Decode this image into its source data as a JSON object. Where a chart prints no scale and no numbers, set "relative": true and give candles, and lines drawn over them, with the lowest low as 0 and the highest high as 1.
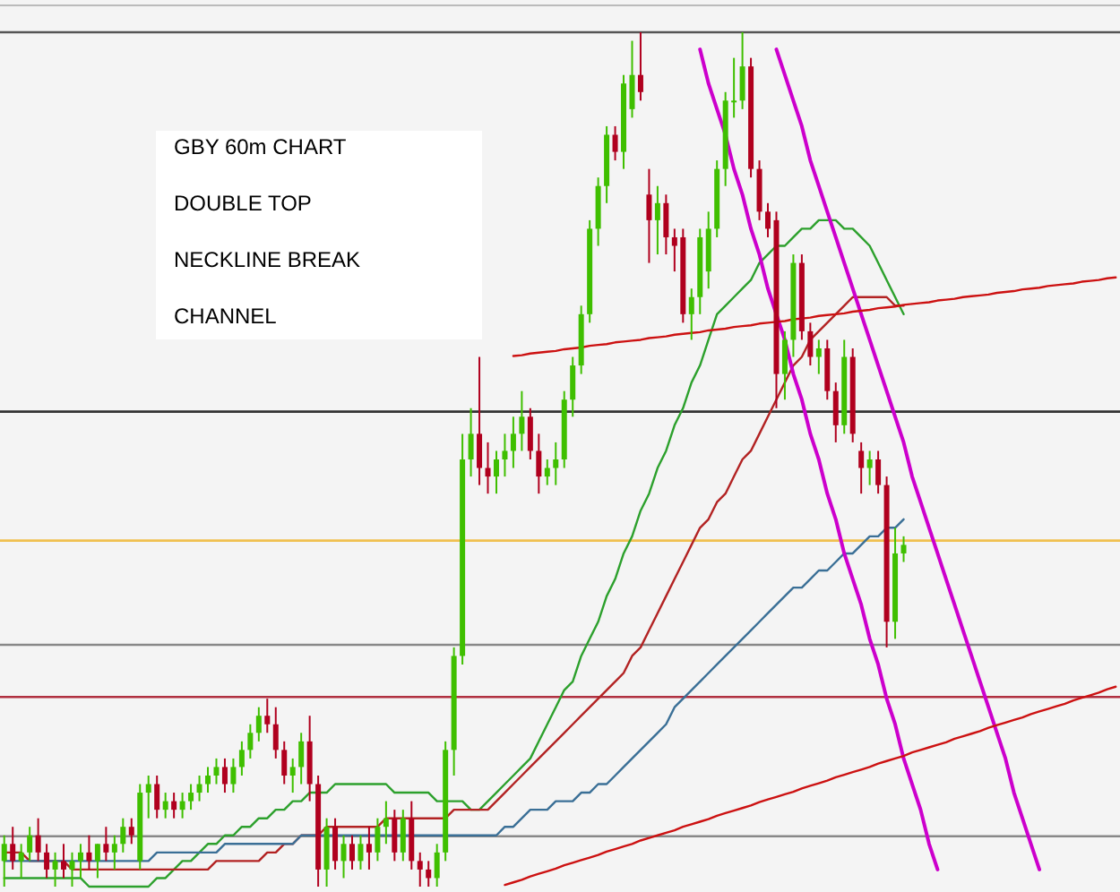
{
  "chart_data": {
    "type": "candlestick",
    "relative": true,
    "annotations": [
      "GBY 60m CHART",
      "DOUBLE TOP",
      "NECKLINE BREAK",
      "CHANNEL"
    ],
    "categories": [
      null,
      null,
      null,
      null,
      null,
      null,
      null,
      null,
      null,
      null,
      null,
      null,
      null,
      null,
      null,
      null,
      null,
      null,
      null,
      null,
      null,
      null,
      null,
      null,
      null,
      null,
      null,
      null,
      null,
      null,
      null,
      null,
      null,
      null,
      null,
      null,
      null,
      null,
      null,
      null,
      null,
      null,
      null,
      null,
      null,
      null,
      null,
      null,
      null,
      null,
      null,
      null,
      null,
      null,
      null,
      null,
      null,
      null,
      null,
      null,
      null,
      null,
      null,
      null,
      null,
      null,
      null,
      null,
      null,
      null,
      null,
      null,
      null,
      null,
      null,
      null,
      null,
      null,
      null,
      null,
      null,
      null,
      null,
      null,
      null,
      null,
      null,
      null,
      null,
      null,
      null,
      null,
      null,
      null,
      null,
      null,
      null,
      null,
      null,
      null,
      null,
      null,
      null,
      null,
      null,
      null,
      null,
      null,
      null,
      null,
      null,
      null,
      null,
      null,
      null,
      null,
      null,
      null,
      null,
      null,
      null,
      null,
      null,
      null,
      null,
      null,
      null,
      null,
      null,
      null,
      null,
      null
    ],
    "ohlc": [
      [
        0.03,
        0.06,
        0.0,
        0.05
      ],
      [
        0.05,
        0.07,
        0.02,
        0.03
      ],
      [
        0.03,
        0.05,
        0.01,
        0.04
      ],
      [
        0.04,
        0.07,
        0.03,
        0.06
      ],
      [
        0.06,
        0.08,
        0.03,
        0.04
      ],
      [
        0.04,
        0.05,
        0.01,
        0.02
      ],
      [
        0.02,
        0.04,
        0.0,
        0.03
      ],
      [
        0.03,
        0.05,
        0.01,
        0.02
      ],
      [
        0.02,
        0.04,
        0.0,
        0.03
      ],
      [
        0.03,
        0.05,
        0.01,
        0.04
      ],
      [
        0.04,
        0.06,
        0.02,
        0.03
      ],
      [
        0.03,
        0.05,
        0.01,
        0.05
      ],
      [
        0.05,
        0.07,
        0.03,
        0.04
      ],
      [
        0.04,
        0.06,
        0.02,
        0.05
      ],
      [
        0.05,
        0.08,
        0.04,
        0.07
      ],
      [
        0.07,
        0.08,
        0.05,
        0.06
      ],
      [
        0.03,
        0.12,
        0.02,
        0.11
      ],
      [
        0.11,
        0.13,
        0.08,
        0.12
      ],
      [
        0.12,
        0.13,
        0.08,
        0.09
      ],
      [
        0.09,
        0.11,
        0.08,
        0.1
      ],
      [
        0.1,
        0.11,
        0.08,
        0.09
      ],
      [
        0.09,
        0.11,
        0.08,
        0.1
      ],
      [
        0.1,
        0.12,
        0.09,
        0.11
      ],
      [
        0.11,
        0.13,
        0.1,
        0.12
      ],
      [
        0.12,
        0.14,
        0.11,
        0.13
      ],
      [
        0.13,
        0.15,
        0.12,
        0.14
      ],
      [
        0.14,
        0.15,
        0.11,
        0.12
      ],
      [
        0.12,
        0.15,
        0.11,
        0.14
      ],
      [
        0.14,
        0.17,
        0.13,
        0.16
      ],
      [
        0.16,
        0.19,
        0.15,
        0.18
      ],
      [
        0.18,
        0.21,
        0.17,
        0.2
      ],
      [
        0.2,
        0.22,
        0.18,
        0.19
      ],
      [
        0.19,
        0.21,
        0.15,
        0.16
      ],
      [
        0.16,
        0.17,
        0.12,
        0.13
      ],
      [
        0.13,
        0.15,
        0.11,
        0.14
      ],
      [
        0.14,
        0.18,
        0.12,
        0.17
      ],
      [
        0.17,
        0.2,
        0.1,
        0.12
      ],
      [
        0.12,
        0.13,
        0.0,
        0.02
      ],
      [
        0.02,
        0.08,
        0.0,
        0.07
      ],
      [
        0.07,
        0.08,
        0.02,
        0.03
      ],
      [
        0.03,
        0.06,
        0.01,
        0.05
      ],
      [
        0.05,
        0.06,
        0.02,
        0.03
      ],
      [
        0.03,
        0.06,
        0.02,
        0.05
      ],
      [
        0.05,
        0.07,
        0.02,
        0.04
      ],
      [
        0.04,
        0.08,
        0.03,
        0.07
      ],
      [
        0.07,
        0.1,
        0.05,
        0.08
      ],
      [
        0.08,
        0.09,
        0.03,
        0.04
      ],
      [
        0.04,
        0.09,
        0.03,
        0.08
      ],
      [
        0.08,
        0.1,
        0.02,
        0.03
      ],
      [
        0.03,
        0.04,
        0.0,
        0.02
      ],
      [
        0.02,
        0.03,
        0.0,
        0.01
      ],
      [
        0.01,
        0.05,
        0.0,
        0.04
      ],
      [
        0.04,
        0.17,
        0.03,
        0.16
      ],
      [
        0.16,
        0.28,
        0.13,
        0.27
      ],
      [
        0.27,
        0.53,
        0.26,
        0.5
      ],
      [
        0.5,
        0.56,
        0.48,
        0.53
      ],
      [
        0.53,
        0.62,
        0.47,
        0.49
      ],
      [
        0.49,
        0.52,
        0.46,
        0.48
      ],
      [
        0.48,
        0.51,
        0.46,
        0.5
      ],
      [
        0.5,
        0.53,
        0.48,
        0.51
      ],
      [
        0.51,
        0.55,
        0.49,
        0.53
      ],
      [
        0.53,
        0.58,
        0.51,
        0.55
      ],
      [
        0.55,
        0.56,
        0.5,
        0.51
      ],
      [
        0.51,
        0.53,
        0.46,
        0.48
      ],
      [
        0.48,
        0.5,
        0.47,
        0.49
      ],
      [
        0.49,
        0.52,
        0.47,
        0.5
      ],
      [
        0.5,
        0.58,
        0.49,
        0.57
      ],
      [
        0.57,
        0.62,
        0.55,
        0.61
      ],
      [
        0.61,
        0.68,
        0.6,
        0.67
      ],
      [
        0.67,
        0.78,
        0.66,
        0.77
      ],
      [
        0.77,
        0.83,
        0.75,
        0.82
      ],
      [
        0.82,
        0.89,
        0.8,
        0.88
      ],
      [
        0.88,
        0.89,
        0.85,
        0.86
      ],
      [
        0.86,
        0.95,
        0.84,
        0.94
      ],
      [
        0.91,
        0.99,
        0.9,
        0.95
      ],
      [
        0.95,
        1.0,
        0.92,
        0.93
      ],
      [
        0.81,
        0.84,
        0.73,
        0.78
      ],
      [
        0.78,
        0.82,
        0.74,
        0.8
      ],
      [
        0.8,
        0.81,
        0.74,
        0.76
      ],
      [
        0.76,
        0.77,
        0.72,
        0.75
      ],
      [
        0.76,
        0.77,
        0.66,
        0.67
      ],
      [
        0.67,
        0.7,
        0.64,
        0.69
      ],
      [
        0.69,
        0.77,
        0.67,
        0.76
      ],
      [
        0.72,
        0.79,
        0.7,
        0.77
      ],
      [
        0.77,
        0.85,
        0.76,
        0.84
      ],
      [
        0.84,
        0.93,
        0.82,
        0.92
      ],
      [
        0.92,
        0.97,
        0.9,
        0.92
      ],
      [
        0.92,
        1.0,
        0.91,
        0.96
      ],
      [
        0.96,
        0.97,
        0.83,
        0.84
      ],
      [
        0.84,
        0.85,
        0.78,
        0.79
      ],
      [
        0.79,
        0.8,
        0.76,
        0.77
      ],
      [
        0.78,
        0.79,
        0.56,
        0.6
      ],
      [
        0.6,
        0.65,
        0.57,
        0.64
      ],
      [
        0.64,
        0.74,
        0.62,
        0.73
      ],
      [
        0.73,
        0.74,
        0.64,
        0.65
      ],
      [
        0.65,
        0.66,
        0.61,
        0.62
      ],
      [
        0.62,
        0.64,
        0.6,
        0.63
      ],
      [
        0.63,
        0.64,
        0.57,
        0.58
      ],
      [
        0.58,
        0.59,
        0.52,
        0.54
      ],
      [
        0.54,
        0.64,
        0.53,
        0.62
      ],
      [
        0.62,
        0.63,
        0.52,
        0.53
      ],
      [
        0.51,
        0.52,
        0.46,
        0.49
      ],
      [
        0.49,
        0.51,
        0.47,
        0.5
      ],
      [
        0.5,
        0.51,
        0.46,
        0.47
      ],
      [
        0.47,
        0.48,
        0.28,
        0.31
      ],
      [
        0.31,
        0.42,
        0.29,
        0.39
      ],
      [
        0.39,
        0.41,
        0.38,
        0.4
      ],
      null,
      null,
      null,
      null,
      null,
      null,
      null,
      null,
      null,
      null,
      null,
      null,
      null,
      null,
      null,
      null,
      null,
      null,
      null,
      null,
      null,
      null,
      null,
      null,
      null
    ],
    "series": [
      {
        "type": "line",
        "color": "#2ca02c",
        "values": [
          0.01,
          0.01,
          0.01,
          0.01,
          0.01,
          0.01,
          0.01,
          0.01,
          0.01,
          0.01,
          0,
          0,
          0,
          0,
          0,
          0,
          0,
          0,
          0.01,
          0.01,
          0.02,
          0.03,
          0.03,
          0.04,
          0.05,
          0.05,
          0.06,
          0.06,
          0.07,
          0.07,
          0.08,
          0.08,
          0.09,
          0.09,
          0.1,
          0.1,
          0.11,
          0.11,
          0.11,
          0.12,
          0.12,
          0.12,
          0.12,
          0.12,
          0.12,
          0.12,
          0.11,
          0.11,
          0.11,
          0.11,
          0.11,
          0.1,
          0.1,
          0.1,
          0.1,
          0.09,
          0.09,
          0.1,
          0.11,
          0.12,
          0.13,
          0.14,
          0.15,
          0.17,
          0.19,
          0.21,
          0.23,
          0.24,
          0.27,
          0.29,
          0.31,
          0.34,
          0.36,
          0.39,
          0.41,
          0.44,
          0.46,
          0.49,
          0.51,
          0.54,
          0.56,
          0.59,
          0.61,
          0.64,
          0.67,
          0.68,
          0.69,
          0.7,
          0.71,
          0.73,
          0.74,
          0.75,
          0.75,
          0.76,
          0.77,
          0.77,
          0.78,
          0.78,
          0.78,
          0.77,
          0.77,
          0.76,
          0.75,
          0.73,
          0.71,
          0.69,
          0.67,
          null,
          null,
          null,
          null,
          null,
          null,
          null,
          null,
          null,
          null,
          null,
          null,
          null,
          null,
          null,
          null,
          null,
          null,
          null,
          null,
          null,
          null,
          null,
          null,
          null
        ]
      },
      {
        "type": "line",
        "color": "#b22222",
        "values": [
          0.04,
          0.04,
          0.04,
          0.03,
          0.03,
          0.03,
          0.03,
          0.03,
          0.02,
          0.02,
          0.02,
          0.02,
          0.02,
          0.02,
          0.02,
          0.02,
          0.02,
          0.02,
          0.02,
          0.02,
          0.02,
          0.02,
          0.02,
          0.02,
          0.02,
          0.03,
          0.03,
          0.03,
          0.03,
          0.03,
          0.03,
          0.04,
          0.04,
          0.05,
          0.05,
          0.06,
          0.06,
          0.06,
          0.07,
          0.07,
          0.07,
          0.07,
          0.07,
          0.07,
          0.07,
          0.08,
          0.08,
          0.08,
          0.08,
          0.08,
          0.08,
          0.08,
          0.08,
          0.09,
          0.09,
          0.09,
          0.09,
          0.09,
          0.1,
          0.11,
          0.12,
          0.13,
          0.14,
          0.15,
          0.16,
          0.17,
          0.18,
          0.19,
          0.2,
          0.21,
          0.22,
          0.23,
          0.24,
          0.25,
          0.27,
          0.28,
          0.3,
          0.32,
          0.34,
          0.36,
          0.38,
          0.4,
          0.42,
          0.43,
          0.45,
          0.46,
          0.48,
          0.5,
          0.51,
          0.53,
          0.55,
          0.57,
          0.59,
          0.61,
          0.62,
          0.64,
          0.65,
          0.66,
          0.67,
          0.68,
          0.69,
          0.69,
          0.69,
          0.69,
          0.69,
          0.68,
          0.68,
          null,
          null,
          null,
          null,
          null,
          null,
          null,
          null,
          null,
          null,
          null,
          null,
          null,
          null,
          null,
          null,
          null,
          null,
          null,
          null,
          null,
          null,
          null,
          null,
          null
        ]
      },
      {
        "type": "line",
        "color": "#3a6f96",
        "values": [
          0.03,
          0.03,
          0.03,
          0.03,
          0.03,
          0.03,
          0.03,
          0.03,
          0.03,
          0.03,
          0.03,
          0.03,
          0.03,
          0.03,
          0.03,
          0.03,
          0.03,
          0.03,
          0.04,
          0.04,
          0.04,
          0.04,
          0.04,
          0.04,
          0.04,
          0.04,
          0.05,
          0.05,
          0.05,
          0.05,
          0.05,
          0.05,
          0.05,
          0.05,
          0.05,
          0.06,
          0.06,
          0.06,
          0.06,
          0.06,
          0.06,
          0.06,
          0.06,
          0.06,
          0.06,
          0.06,
          0.06,
          0.06,
          0.06,
          0.06,
          0.06,
          0.06,
          0.06,
          0.06,
          0.06,
          0.06,
          0.06,
          0.06,
          0.06,
          0.07,
          0.07,
          0.08,
          0.09,
          0.09,
          0.09,
          0.1,
          0.1,
          0.1,
          0.11,
          0.11,
          0.12,
          0.12,
          0.13,
          0.14,
          0.15,
          0.16,
          0.17,
          0.18,
          0.19,
          0.21,
          0.22,
          0.23,
          0.24,
          0.25,
          0.26,
          0.27,
          0.28,
          0.29,
          0.3,
          0.31,
          0.32,
          0.33,
          0.34,
          0.35,
          0.35,
          0.36,
          0.37,
          0.37,
          0.38,
          0.39,
          0.39,
          0.4,
          0.41,
          0.41,
          0.42,
          0.42,
          0.43,
          null,
          null,
          null,
          null,
          null,
          null,
          null,
          null,
          null,
          null,
          null,
          null,
          null,
          null,
          null,
          null,
          null,
          null,
          null,
          null,
          null,
          null,
          null,
          null,
          null
        ]
      },
      {
        "type": "line",
        "color": "#cc00cc",
        "values": [
          null,
          null,
          null,
          null,
          null,
          null,
          null,
          null,
          null,
          null,
          null,
          null,
          null,
          null,
          null,
          null,
          null,
          null,
          null,
          null,
          null,
          null,
          null,
          null,
          null,
          null,
          null,
          null,
          null,
          null,
          null,
          null,
          null,
          null,
          null,
          null,
          null,
          null,
          null,
          null,
          null,
          null,
          null,
          null,
          null,
          null,
          null,
          null,
          null,
          null,
          null,
          null,
          null,
          null,
          null,
          null,
          null,
          null,
          null,
          null,
          null,
          null,
          null,
          null,
          null,
          null,
          null,
          null,
          null,
          null,
          null,
          null,
          null,
          null,
          null,
          null,
          null,
          null,
          null,
          null,
          null,
          null,
          0.98,
          0.94,
          0.91,
          0.88,
          0.84,
          0.81,
          0.77,
          0.74,
          0.7,
          0.67,
          0.64,
          0.6,
          0.57,
          0.53,
          0.5,
          0.46,
          0.43,
          0.39,
          0.36,
          0.33,
          0.29,
          0.26,
          0.22,
          0.19,
          0.15,
          0.12,
          0.09,
          0.05,
          0.02,
          null,
          null,
          null,
          null,
          null,
          null,
          null,
          null,
          null,
          null,
          null,
          null,
          null,
          null,
          null,
          null,
          null,
          null,
          null,
          null,
          null
        ]
      },
      {
        "type": "line",
        "color": "#cc00cc",
        "values": [
          null,
          null,
          null,
          null,
          null,
          null,
          null,
          null,
          null,
          null,
          null,
          null,
          null,
          null,
          null,
          null,
          null,
          null,
          null,
          null,
          null,
          null,
          null,
          null,
          null,
          null,
          null,
          null,
          null,
          null,
          null,
          null,
          null,
          null,
          null,
          null,
          null,
          null,
          null,
          null,
          null,
          null,
          null,
          null,
          null,
          null,
          null,
          null,
          null,
          null,
          null,
          null,
          null,
          null,
          null,
          null,
          null,
          null,
          null,
          null,
          null,
          null,
          null,
          null,
          null,
          null,
          null,
          null,
          null,
          null,
          null,
          null,
          null,
          null,
          null,
          null,
          null,
          null,
          null,
          null,
          null,
          null,
          null,
          null,
          null,
          null,
          null,
          null,
          null,
          null,
          null,
          0.98,
          0.95,
          0.92,
          0.89,
          0.85,
          0.82,
          0.79,
          0.76,
          0.73,
          0.7,
          0.67,
          0.64,
          0.61,
          0.58,
          0.55,
          0.52,
          0.48,
          0.45,
          0.42,
          0.39,
          0.36,
          0.33,
          0.3,
          0.27,
          0.24,
          0.21,
          0.18,
          0.15,
          0.11,
          0.08,
          0.05,
          0.02,
          null,
          null,
          null,
          null,
          null,
          null,
          null,
          null,
          null
        ]
      },
      {
        "type": "line",
        "color": "#cc1111",
        "values": [
          null,
          null,
          null,
          null,
          null,
          null,
          null,
          null,
          null,
          null,
          null,
          null,
          null,
          null,
          null,
          null,
          null,
          null,
          null,
          null,
          null,
          null,
          null,
          null,
          null,
          null,
          null,
          null,
          null,
          null,
          null,
          null,
          null,
          null,
          null,
          null,
          null,
          null,
          null,
          null,
          null,
          null,
          null,
          null,
          null,
          null,
          null,
          null,
          null,
          null,
          null,
          null,
          null,
          null,
          null,
          null,
          null,
          null,
          null,
          null,
          0.621,
          0.622,
          0.624,
          0.625,
          0.626,
          0.627,
          0.629,
          0.63,
          0.631,
          0.633,
          0.634,
          0.635,
          0.637,
          0.638,
          0.639,
          0.64,
          0.642,
          0.643,
          0.644,
          0.646,
          0.647,
          0.648,
          0.649,
          0.651,
          0.652,
          0.653,
          0.655,
          0.656,
          0.657,
          0.659,
          0.66,
          0.661,
          0.662,
          0.664,
          0.665,
          0.666,
          0.668,
          0.669,
          0.67,
          0.671,
          0.673,
          0.674,
          0.675,
          0.677,
          0.678,
          0.679,
          0.681,
          0.682,
          0.683,
          0.684,
          0.686,
          0.687,
          0.688,
          0.69,
          0.691,
          0.692,
          0.693,
          0.695,
          0.696,
          0.697,
          0.699,
          0.7,
          0.701,
          0.703,
          0.704,
          0.705,
          0.706,
          0.708,
          0.709,
          0.71,
          0.712,
          0.713
        ]
      },
      {
        "type": "line",
        "color": "#cc1111",
        "values": [
          null,
          null,
          null,
          null,
          null,
          null,
          null,
          null,
          null,
          null,
          null,
          null,
          null,
          null,
          null,
          null,
          null,
          null,
          null,
          null,
          null,
          null,
          null,
          null,
          null,
          null,
          null,
          null,
          null,
          null,
          null,
          null,
          null,
          null,
          null,
          null,
          null,
          null,
          null,
          null,
          null,
          null,
          null,
          null,
          null,
          null,
          null,
          null,
          null,
          null,
          null,
          null,
          null,
          null,
          null,
          null,
          null,
          null,
          null,
          0.002,
          0.005,
          0.008,
          0.012,
          0.015,
          0.018,
          0.021,
          0.025,
          0.028,
          0.031,
          0.034,
          0.037,
          0.041,
          0.044,
          0.047,
          0.05,
          0.054,
          0.057,
          0.06,
          0.063,
          0.066,
          0.07,
          0.073,
          0.076,
          0.079,
          0.083,
          0.086,
          0.089,
          0.092,
          0.095,
          0.099,
          0.102,
          0.105,
          0.108,
          0.111,
          0.115,
          0.118,
          0.121,
          0.124,
          0.128,
          0.131,
          0.134,
          0.137,
          0.14,
          0.144,
          0.147,
          0.15,
          0.153,
          0.157,
          0.16,
          0.163,
          0.166,
          0.169,
          0.173,
          0.176,
          0.179,
          0.182,
          0.186,
          0.189,
          0.192,
          0.195,
          0.198,
          0.202,
          0.205,
          0.208,
          0.211,
          0.214,
          0.218,
          0.221,
          0.224,
          0.227,
          0.231,
          0.234
        ]
      }
    ],
    "ref_lines": [
      {
        "axis": "y",
        "value": 1.0,
        "color": "#555555"
      },
      {
        "axis": "y",
        "value": 0.556,
        "color": "#333333"
      },
      {
        "axis": "y",
        "value": 0.405,
        "color": "#f0c050"
      },
      {
        "axis": "y",
        "value": 0.283,
        "color": "#888888"
      },
      {
        "axis": "y",
        "value": 0.222,
        "color": "#b03040"
      },
      {
        "axis": "y",
        "value": 0.059,
        "color": "#888888"
      }
    ]
  }
}
